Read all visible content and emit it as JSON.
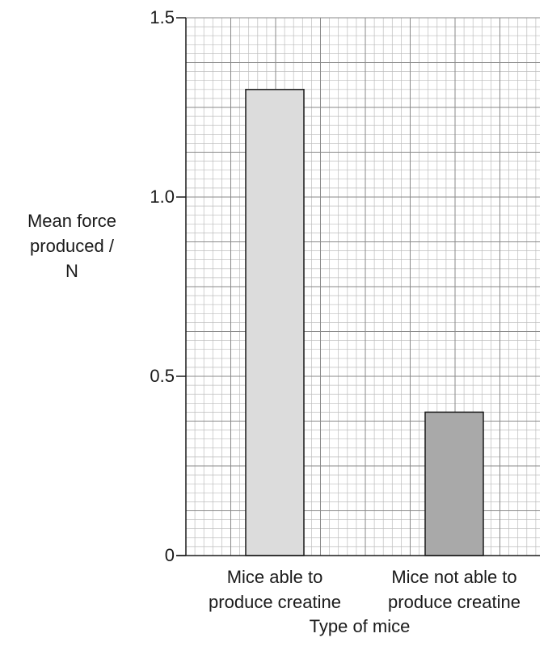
{
  "chart_data": {
    "type": "bar",
    "categories": [
      "Mice able to produce creatine",
      "Mice not able to produce creatine"
    ],
    "category_labels": [
      [
        "Mice able to",
        "produce creatine"
      ],
      [
        "Mice not able to",
        "produce creatine"
      ]
    ],
    "values": [
      1.3,
      0.4
    ],
    "ylim": [
      0,
      1.5
    ],
    "yticks": [
      0,
      0.5,
      1.0,
      1.5
    ],
    "ytick_labels": [
      "0",
      "0.5",
      "1.0",
      "1.5"
    ],
    "ylabel_lines": [
      "Mean force",
      "produced /",
      "N"
    ],
    "xlabel": "Type of mice",
    "grid": true,
    "bar_colors": [
      "#dcdcdc",
      "#a9a9a9"
    ]
  }
}
